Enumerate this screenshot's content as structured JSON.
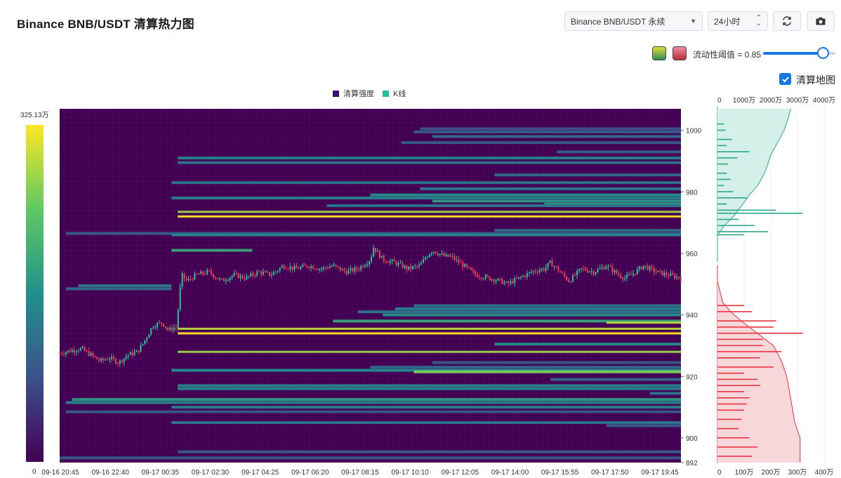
{
  "header": {
    "title": "Binance BNB/USDT 清算热力图",
    "market_select": "Binance BNB/USDT 永续",
    "range_select": "24小时",
    "refresh_icon": "refresh-icon",
    "camera_icon": "camera-icon"
  },
  "controls": {
    "threshold_label": "流动性阈值 = 0.85",
    "threshold_value": 0.85,
    "liq_map_label": "清算地图",
    "liq_map_checked": true,
    "scheme_colors": [
      [
        "#2f8c54",
        "#e0dc3a"
      ],
      [
        "#b92c3c",
        "#f08aa4"
      ]
    ]
  },
  "legend": {
    "intensity": "清算强度",
    "kline": "K线",
    "intensity_color": "#3b0f70",
    "kline_color": "#21c29a"
  },
  "colors": {
    "bg": "#440154",
    "up": "#2ec29a",
    "down": "#ef4055",
    "ask_fill": "#cfeee6",
    "ask_line": "#2aa889",
    "bid_fill": "#f7d3d6",
    "bid_line": "#e8323f"
  },
  "chart_data": {
    "type": "heatmap",
    "colorbar": {
      "max_label": "325.13万",
      "min_label": "0",
      "max": 3251300,
      "min": 0
    },
    "x_ticks": [
      "09-16 20:45",
      "09-16 22:40",
      "09-17 00:35",
      "09-17 02:30",
      "09-17 04:25",
      "09-17 06:20",
      "09-17 08:15",
      "09-17 10:10",
      "09-17 12:05",
      "09-17 14:00",
      "09-17 15:55",
      "09-17 17:50",
      "09-17 19:45"
    ],
    "x_start": "09-16 19:50",
    "x_end": "09-17 20:25",
    "y_range": [
      892,
      1007
    ],
    "y_ticks": [
      1000,
      980,
      960,
      940,
      920,
      900,
      892
    ],
    "bands": [
      {
        "p": 1000.5,
        "t0": 0.58,
        "t1": 1.0,
        "v": 0.25
      },
      {
        "p": 999.5,
        "t0": 0.57,
        "t1": 1.0,
        "v": 0.3
      },
      {
        "p": 998.0,
        "t0": 0.6,
        "t1": 1.0,
        "v": 0.35
      },
      {
        "p": 996.0,
        "t0": 0.55,
        "t1": 1.0,
        "v": 0.3
      },
      {
        "p": 993.0,
        "t0": 0.8,
        "t1": 1.0,
        "v": 0.3
      },
      {
        "p": 991.0,
        "t0": 0.19,
        "t1": 1.0,
        "v": 0.45
      },
      {
        "p": 989.5,
        "t0": 0.19,
        "t1": 1.0,
        "v": 0.4
      },
      {
        "p": 985.5,
        "t0": 0.7,
        "t1": 1.0,
        "v": 0.35
      },
      {
        "p": 983.0,
        "t0": 0.18,
        "t1": 1.0,
        "v": 0.4
      },
      {
        "p": 981.0,
        "t0": 0.58,
        "t1": 1.0,
        "v": 0.4
      },
      {
        "p": 979.0,
        "t0": 0.5,
        "t1": 1.0,
        "v": 0.5
      },
      {
        "p": 978.0,
        "t0": 0.18,
        "t1": 1.0,
        "v": 0.45
      },
      {
        "p": 977.0,
        "t0": 0.6,
        "t1": 1.0,
        "v": 0.55
      },
      {
        "p": 976.0,
        "t0": 0.78,
        "t1": 1.0,
        "v": 0.55
      },
      {
        "p": 975.5,
        "t0": 0.43,
        "t1": 1.0,
        "v": 0.4
      },
      {
        "p": 973.5,
        "t0": 0.19,
        "t1": 1.0,
        "v": 0.85
      },
      {
        "p": 972.0,
        "t0": 0.19,
        "t1": 1.0,
        "v": 1.0
      },
      {
        "p": 967.5,
        "t0": 0.7,
        "t1": 1.0,
        "v": 0.35
      },
      {
        "p": 966.5,
        "t0": 0.01,
        "t1": 1.0,
        "v": 0.3
      },
      {
        "p": 966.0,
        "t0": 0.18,
        "t1": 1.0,
        "v": 0.45
      },
      {
        "p": 961.0,
        "t0": 0.18,
        "t1": 0.31,
        "v": 0.6
      },
      {
        "p": 949.5,
        "t0": 0.03,
        "t1": 0.18,
        "v": 0.4
      },
      {
        "p": 948.5,
        "t0": 0.01,
        "t1": 0.18,
        "v": 0.35
      },
      {
        "p": 943.0,
        "t0": 0.57,
        "t1": 1.0,
        "v": 0.4
      },
      {
        "p": 942.0,
        "t0": 0.54,
        "t1": 1.0,
        "v": 0.45
      },
      {
        "p": 941.0,
        "t0": 0.48,
        "t1": 1.0,
        "v": 0.4
      },
      {
        "p": 940.0,
        "t0": 0.52,
        "t1": 1.0,
        "v": 0.5
      },
      {
        "p": 938.0,
        "t0": 0.44,
        "t1": 1.0,
        "v": 0.6
      },
      {
        "p": 937.5,
        "t0": 0.88,
        "t1": 1.0,
        "v": 0.9
      },
      {
        "p": 935.5,
        "t0": 0.19,
        "t1": 1.0,
        "v": 0.9
      },
      {
        "p": 934.0,
        "t0": 0.19,
        "t1": 1.0,
        "v": 1.0
      },
      {
        "p": 930.5,
        "t0": 0.7,
        "t1": 1.0,
        "v": 0.5
      },
      {
        "p": 928.0,
        "t0": 0.19,
        "t1": 1.0,
        "v": 0.85
      },
      {
        "p": 924.5,
        "t0": 0.6,
        "t1": 1.0,
        "v": 0.3
      },
      {
        "p": 923.0,
        "t0": 0.5,
        "t1": 1.0,
        "v": 0.35
      },
      {
        "p": 922.0,
        "t0": 0.18,
        "t1": 1.0,
        "v": 0.5
      },
      {
        "p": 921.5,
        "t0": 0.57,
        "t1": 1.0,
        "v": 0.8
      },
      {
        "p": 919.0,
        "t0": 0.79,
        "t1": 1.0,
        "v": 0.35
      },
      {
        "p": 917.0,
        "t0": 0.19,
        "t1": 1.0,
        "v": 0.45
      },
      {
        "p": 916.0,
        "t0": 0.19,
        "t1": 1.0,
        "v": 0.45
      },
      {
        "p": 914.5,
        "t0": 0.95,
        "t1": 1.0,
        "v": 0.4
      },
      {
        "p": 912.5,
        "t0": 0.02,
        "t1": 1.0,
        "v": 0.55
      },
      {
        "p": 911.5,
        "t0": 0.01,
        "t1": 1.0,
        "v": 0.45
      },
      {
        "p": 910.0,
        "t0": 0.18,
        "t1": 1.0,
        "v": 0.45
      },
      {
        "p": 908.5,
        "t0": 0.01,
        "t1": 1.0,
        "v": 0.3
      },
      {
        "p": 905.0,
        "t0": 0.18,
        "t1": 1.0,
        "v": 0.4
      },
      {
        "p": 904.0,
        "t0": 0.88,
        "t1": 1.0,
        "v": 0.3
      },
      {
        "p": 895.5,
        "t0": 0.19,
        "t1": 1.0,
        "v": 0.3
      },
      {
        "p": 893.5,
        "t0": 0.0,
        "t1": 1.0,
        "v": 0.3
      }
    ],
    "price_path": [
      [
        0,
        927.5
      ],
      [
        0.02,
        928.5
      ],
      [
        0.035,
        929
      ],
      [
        0.05,
        927
      ],
      [
        0.065,
        925
      ],
      [
        0.08,
        926
      ],
      [
        0.095,
        924.5
      ],
      [
        0.11,
        927
      ],
      [
        0.125,
        928
      ],
      [
        0.135,
        931
      ],
      [
        0.15,
        936.5
      ],
      [
        0.165,
        937.5
      ],
      [
        0.175,
        935
      ],
      [
        0.185,
        936
      ],
      [
        0.19,
        935.5
      ],
      [
        0.19,
        940.5
      ],
      [
        0.196,
        953
      ],
      [
        0.205,
        951
      ],
      [
        0.22,
        953
      ],
      [
        0.24,
        954
      ],
      [
        0.26,
        951
      ],
      [
        0.28,
        953
      ],
      [
        0.3,
        952
      ],
      [
        0.32,
        954
      ],
      [
        0.34,
        953
      ],
      [
        0.36,
        956
      ],
      [
        0.38,
        955
      ],
      [
        0.4,
        956
      ],
      [
        0.42,
        955
      ],
      [
        0.44,
        956
      ],
      [
        0.46,
        954
      ],
      [
        0.48,
        955
      ],
      [
        0.5,
        958
      ],
      [
        0.505,
        962
      ],
      [
        0.52,
        958
      ],
      [
        0.54,
        957
      ],
      [
        0.56,
        955
      ],
      [
        0.58,
        956
      ],
      [
        0.59,
        959
      ],
      [
        0.6,
        961
      ],
      [
        0.62,
        959
      ],
      [
        0.63,
        959
      ],
      [
        0.65,
        956
      ],
      [
        0.67,
        953
      ],
      [
        0.69,
        952
      ],
      [
        0.71,
        951
      ],
      [
        0.72,
        950
      ],
      [
        0.73,
        951
      ],
      [
        0.75,
        953
      ],
      [
        0.76,
        954
      ],
      [
        0.78,
        955
      ],
      [
        0.79,
        957
      ],
      [
        0.8,
        955
      ],
      [
        0.81,
        953
      ],
      [
        0.82,
        951
      ],
      [
        0.83,
        953
      ],
      [
        0.84,
        955
      ],
      [
        0.86,
        954
      ],
      [
        0.88,
        956
      ],
      [
        0.9,
        953
      ],
      [
        0.91,
        952
      ],
      [
        0.92,
        953
      ],
      [
        0.94,
        956
      ],
      [
        0.96,
        954
      ],
      [
        0.98,
        953
      ],
      [
        1.0,
        952
      ]
    ],
    "side_map": {
      "top_axis": {
        "labels": [
          "0",
          "1000万",
          "2000万",
          "3000万",
          "4000万"
        ],
        "max": 40000000
      },
      "bottom_axis": {
        "labels": [
          "0",
          "100万",
          "200万",
          "300万",
          "400万"
        ],
        "max": 4000000
      },
      "ask_curve": [
        [
          1007,
          27500000
        ],
        [
          1004,
          26500000
        ],
        [
          1000,
          25000000
        ],
        [
          996,
          22500000
        ],
        [
          992,
          20000000
        ],
        [
          988,
          18500000
        ],
        [
          985,
          17000000
        ],
        [
          982,
          15000000
        ],
        [
          979,
          12000000
        ],
        [
          976,
          9500000
        ],
        [
          972,
          6000000
        ],
        [
          969,
          2500000
        ],
        [
          967,
          1000000
        ],
        [
          966,
          0
        ]
      ],
      "ask_bars": [
        [
          1002,
          2500000
        ],
        [
          1000,
          3000000
        ],
        [
          997,
          5500000
        ],
        [
          995,
          3500000
        ],
        [
          993,
          12000000
        ],
        [
          991,
          7500000
        ],
        [
          989,
          4000000
        ],
        [
          986,
          3500000
        ],
        [
          984,
          5000000
        ],
        [
          982,
          2500000
        ],
        [
          980,
          6000000
        ],
        [
          978,
          11000000
        ],
        [
          976,
          3500000
        ],
        [
          974,
          22000000
        ],
        [
          973,
          32000000
        ],
        [
          971,
          8000000
        ],
        [
          969,
          14000000
        ],
        [
          967,
          19000000
        ],
        [
          966,
          10000000
        ]
      ],
      "bid_curve": [
        [
          951,
          0
        ],
        [
          944,
          200000
        ],
        [
          941,
          500000
        ],
        [
          938,
          900000
        ],
        [
          934,
          1500000
        ],
        [
          930,
          2100000
        ],
        [
          925,
          2400000
        ],
        [
          920,
          2600000
        ],
        [
          915,
          2700000
        ],
        [
          910,
          2800000
        ],
        [
          905,
          2900000
        ],
        [
          900,
          3100000
        ],
        [
          895,
          3100000
        ],
        [
          892,
          3100000
        ]
      ],
      "bid_bars": [
        [
          943,
          1000000
        ],
        [
          941,
          1300000
        ],
        [
          938,
          2200000
        ],
        [
          936,
          2100000
        ],
        [
          934,
          3200000
        ],
        [
          932,
          1700000
        ],
        [
          930,
          1700000
        ],
        [
          928,
          2400000
        ],
        [
          926,
          1600000
        ],
        [
          923,
          2100000
        ],
        [
          921,
          1000000
        ],
        [
          919,
          1500000
        ],
        [
          917,
          1600000
        ],
        [
          915,
          1000000
        ],
        [
          913,
          1200000
        ],
        [
          911,
          1100000
        ],
        [
          909,
          1000000
        ],
        [
          906,
          900000
        ],
        [
          903,
          800000
        ],
        [
          900,
          1200000
        ],
        [
          897,
          1500000
        ],
        [
          894,
          1300000
        ]
      ]
    }
  }
}
